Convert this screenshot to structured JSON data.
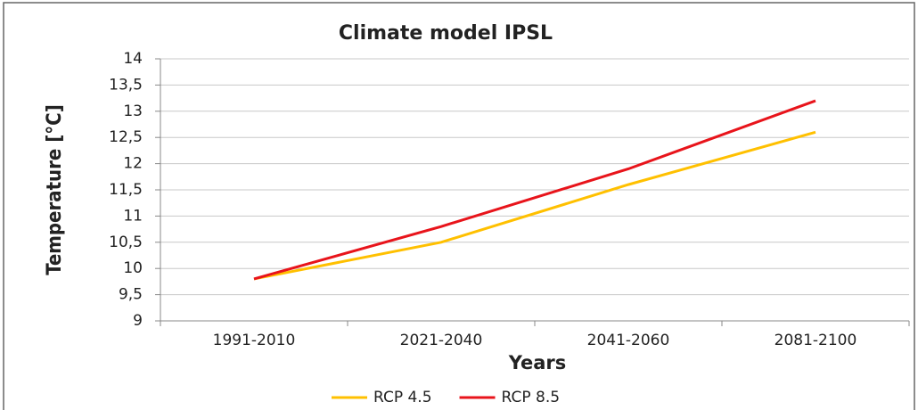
{
  "chart_data": {
    "type": "line",
    "title": "Climate model IPSL",
    "x_label": "Years",
    "y_label": "Temperature [°C]",
    "categories": [
      "1991-2010",
      "2021-2040",
      "2041-2060",
      "2081-2100"
    ],
    "series": [
      {
        "name": "RCP 4.5",
        "color": "#ffc000",
        "values": [
          9.8,
          10.5,
          11.6,
          12.6
        ]
      },
      {
        "name": "RCP 8.5",
        "color": "#e8141b",
        "values": [
          9.8,
          10.8,
          11.9,
          13.2
        ]
      }
    ],
    "ylim": [
      9,
      14
    ],
    "yticks": [
      9,
      {
        "value": 9.5,
        "label": "9,5"
      },
      10,
      {
        "value": 10.5,
        "label": "10,5"
      },
      11,
      {
        "value": 11.5,
        "label": "11,5"
      },
      12,
      {
        "value": 12.5,
        "label": "12,5"
      },
      13,
      {
        "value": 13.5,
        "label": "13,5"
      },
      14
    ],
    "grid": true,
    "legend": "bottom"
  }
}
